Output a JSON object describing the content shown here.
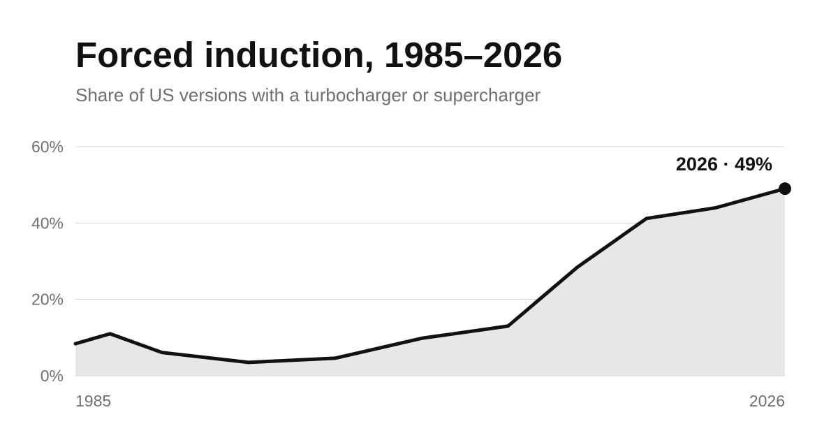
{
  "chart_data": {
    "type": "area",
    "title": "Forced induction, 1985–2026",
    "subtitle": "Share of US versions with a turbocharger or supercharger",
    "xlabel": "",
    "ylabel": "",
    "xlim": [
      1985,
      2026
    ],
    "ylim": [
      0,
      60
    ],
    "y_ticks": [
      {
        "value": 0,
        "label": "0%"
      },
      {
        "value": 20,
        "label": "20%"
      },
      {
        "value": 40,
        "label": "40%"
      },
      {
        "value": 60,
        "label": "60%"
      }
    ],
    "x_ticks": [
      {
        "value": 1985,
        "label": "1985"
      },
      {
        "value": 2026,
        "label": "2026"
      }
    ],
    "grid": true,
    "legend": "none",
    "series": [
      {
        "points": [
          {
            "x": 1985,
            "y": 8.4
          },
          {
            "x": 1987,
            "y": 11.0
          },
          {
            "x": 1990,
            "y": 6.1
          },
          {
            "x": 1995,
            "y": 3.5
          },
          {
            "x": 2000,
            "y": 4.6
          },
          {
            "x": 2005,
            "y": 9.8
          },
          {
            "x": 2010,
            "y": 13.0
          },
          {
            "x": 2014,
            "y": 28.4
          },
          {
            "x": 2018,
            "y": 41.2
          },
          {
            "x": 2022,
            "y": 44.0
          },
          {
            "x": 2026,
            "y": 49.0
          }
        ]
      }
    ],
    "end_annotation": "2026 · 49%",
    "colors": {
      "line": "#111111",
      "area": "#e7e7e7",
      "marker": "#111111"
    }
  }
}
